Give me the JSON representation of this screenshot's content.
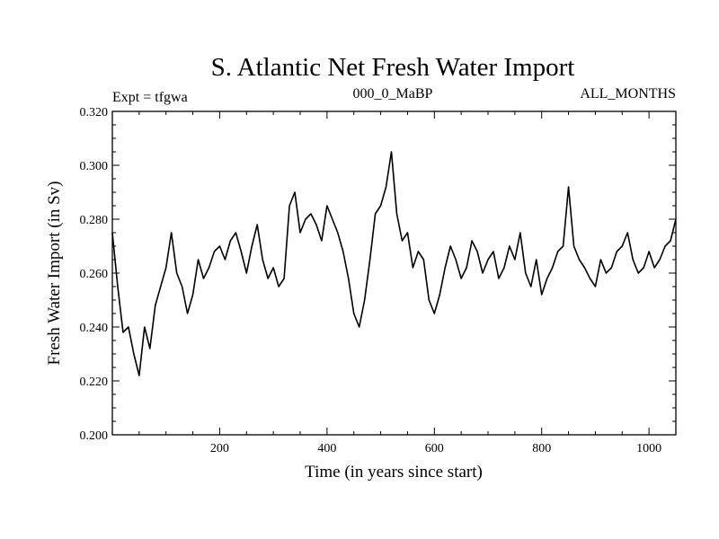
{
  "chart_data": {
    "type": "line",
    "title": "S. Atlantic Net Fresh Water Import",
    "subtitle_left": "Expt = tfgwa",
    "subtitle_center": "000_0_MaBP",
    "subtitle_right": "ALL_MONTHS",
    "xlabel": "Time (in years since start)",
    "ylabel": "Fresh Water Import (in Sv)",
    "xlim": [
      0,
      1050
    ],
    "ylim": [
      0.2,
      0.32
    ],
    "x_ticks": [
      200,
      400,
      600,
      800,
      1000
    ],
    "x_tick_labels": [
      "200",
      "400",
      "600",
      "800",
      "1000"
    ],
    "y_ticks": [
      0.2,
      0.22,
      0.24,
      0.26,
      0.28,
      0.3,
      0.32
    ],
    "y_tick_labels": [
      "0.200",
      "0.220",
      "0.240",
      "0.260",
      "0.280",
      "0.300",
      "0.320"
    ],
    "x_minor_step": 50,
    "y_minor_step": 0.005,
    "grid": false,
    "series": [
      {
        "name": "Net Fresh Water Import",
        "color": "#000000",
        "x": [
          0,
          10,
          20,
          30,
          40,
          50,
          60,
          70,
          80,
          90,
          100,
          110,
          120,
          130,
          140,
          150,
          160,
          170,
          180,
          190,
          200,
          210,
          220,
          230,
          240,
          250,
          260,
          270,
          280,
          290,
          300,
          310,
          320,
          330,
          340,
          350,
          360,
          370,
          380,
          390,
          400,
          410,
          420,
          430,
          440,
          450,
          460,
          470,
          480,
          490,
          500,
          510,
          520,
          530,
          540,
          550,
          560,
          570,
          580,
          590,
          600,
          610,
          620,
          630,
          640,
          650,
          660,
          670,
          680,
          690,
          700,
          710,
          720,
          730,
          740,
          750,
          760,
          770,
          780,
          790,
          800,
          810,
          820,
          830,
          840,
          850,
          860,
          870,
          880,
          890,
          900,
          910,
          920,
          930,
          940,
          950,
          960,
          970,
          980,
          990,
          1000,
          1010,
          1020,
          1030,
          1040,
          1050
        ],
        "values": [
          0.275,
          0.255,
          0.238,
          0.24,
          0.23,
          0.222,
          0.24,
          0.232,
          0.248,
          0.255,
          0.262,
          0.275,
          0.26,
          0.255,
          0.245,
          0.252,
          0.265,
          0.258,
          0.262,
          0.268,
          0.27,
          0.265,
          0.272,
          0.275,
          0.268,
          0.26,
          0.27,
          0.278,
          0.265,
          0.258,
          0.262,
          0.255,
          0.258,
          0.285,
          0.29,
          0.275,
          0.28,
          0.282,
          0.278,
          0.272,
          0.285,
          0.28,
          0.275,
          0.268,
          0.258,
          0.245,
          0.24,
          0.25,
          0.265,
          0.282,
          0.285,
          0.292,
          0.305,
          0.282,
          0.272,
          0.275,
          0.262,
          0.268,
          0.265,
          0.25,
          0.245,
          0.252,
          0.262,
          0.27,
          0.265,
          0.258,
          0.262,
          0.272,
          0.268,
          0.26,
          0.265,
          0.268,
          0.258,
          0.262,
          0.27,
          0.265,
          0.275,
          0.26,
          0.255,
          0.265,
          0.252,
          0.258,
          0.262,
          0.268,
          0.27,
          0.292,
          0.27,
          0.265,
          0.262,
          0.258,
          0.255,
          0.265,
          0.26,
          0.262,
          0.268,
          0.27,
          0.275,
          0.265,
          0.26,
          0.262,
          0.268,
          0.262,
          0.265,
          0.27,
          0.272,
          0.28
        ]
      }
    ]
  }
}
